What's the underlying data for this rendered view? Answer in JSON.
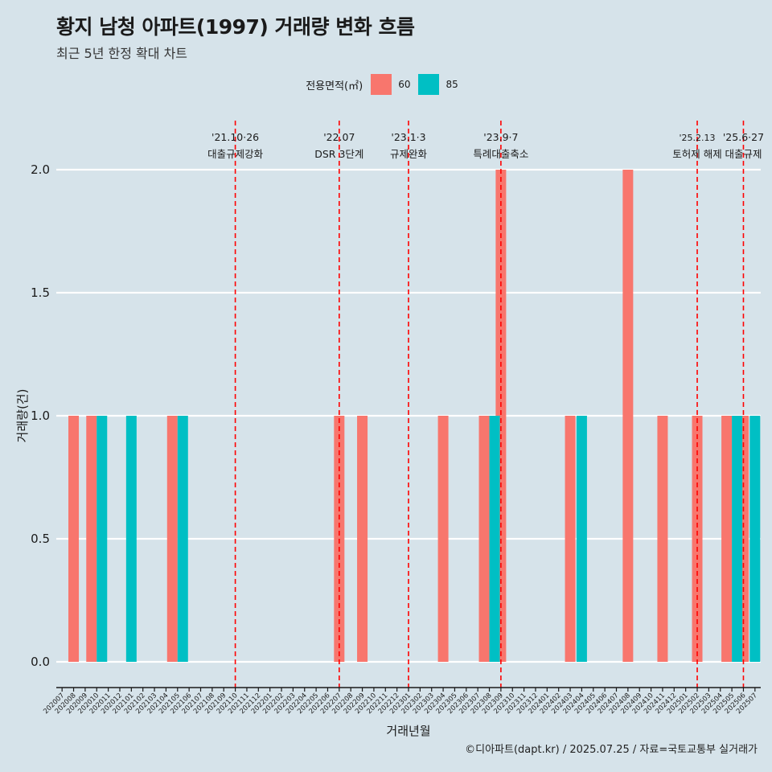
{
  "title": "황지 남청 아파트(1997) 거래량 변화 흐름",
  "subtitle": "최근 5년 한정 확대 차트",
  "caption": "©디아파트(dapt.kr) / 2025.07.25 / 자료=국토교통부 실거래가",
  "colors": {
    "s60": "#f8766d",
    "s85": "#00bfc4",
    "event_line": "#ff0000",
    "background": "#d6e3ea",
    "grid": "#ffffff"
  },
  "chart_data": {
    "type": "bar",
    "xlabel": "거래년월",
    "ylabel": "거래량(건)",
    "ylim": [
      0,
      2
    ],
    "yticks": [
      "0.0",
      "0.5",
      "1.0",
      "1.5",
      "2.0"
    ],
    "legend_title": "전용면적(㎡)",
    "categories": [
      "202007",
      "202008",
      "202009",
      "202010",
      "202011",
      "202012",
      "202101",
      "202102",
      "202103",
      "202104",
      "202105",
      "202106",
      "202107",
      "202108",
      "202109",
      "202110",
      "202111",
      "202112",
      "202201",
      "202202",
      "202203",
      "202204",
      "202205",
      "202206",
      "202207",
      "202208",
      "202209",
      "202210",
      "202211",
      "202212",
      "202301",
      "202302",
      "202303",
      "202304",
      "202305",
      "202306",
      "202307",
      "202308",
      "202309",
      "202310",
      "202311",
      "202312",
      "202401",
      "202402",
      "202403",
      "202404",
      "202405",
      "202406",
      "202407",
      "202408",
      "202409",
      "202410",
      "202411",
      "202412",
      "202501",
      "202502",
      "202503",
      "202504",
      "202505",
      "202506",
      "202507"
    ],
    "series": [
      {
        "name": "60",
        "values": [
          0,
          1,
          0,
          1,
          0,
          0,
          0,
          0,
          0,
          0,
          1,
          0,
          0,
          0,
          0,
          0,
          0,
          0,
          0,
          0,
          0,
          0,
          0,
          0,
          1,
          0,
          1,
          0,
          0,
          0,
          0,
          0,
          0,
          1,
          0,
          0,
          0,
          1,
          2,
          0,
          0,
          0,
          0,
          0,
          1,
          0,
          0,
          0,
          0,
          2,
          0,
          0,
          1,
          0,
          0,
          1,
          0,
          0,
          1,
          1,
          0
        ]
      },
      {
        "name": "85",
        "values": [
          0,
          0,
          0,
          1,
          0,
          0,
          1,
          0,
          0,
          0,
          1,
          0,
          0,
          0,
          0,
          0,
          0,
          0,
          0,
          0,
          0,
          0,
          0,
          0,
          0,
          0,
          0,
          0,
          0,
          0,
          0,
          0,
          0,
          0,
          0,
          0,
          0,
          1,
          0,
          0,
          0,
          0,
          0,
          0,
          0,
          1,
          0,
          0,
          0,
          0,
          0,
          0,
          0,
          0,
          0,
          0,
          0,
          0,
          1,
          0,
          1
        ]
      }
    ],
    "events": [
      {
        "date": "'21.10·26",
        "label": "대출규제강화",
        "month": "202110"
      },
      {
        "date": "'22.07",
        "label": "DSR 3단계",
        "month": "202207"
      },
      {
        "date": "'23.1·3",
        "label": "규제완화",
        "month": "202301"
      },
      {
        "date": "'23.9·7",
        "label": "특례대출축소",
        "month": "202309"
      },
      {
        "date": "'25.2.13",
        "label": "토허제 해제",
        "month": "202502"
      },
      {
        "date": "'25.6·27",
        "label": "대출규제",
        "month": "202506"
      }
    ]
  }
}
